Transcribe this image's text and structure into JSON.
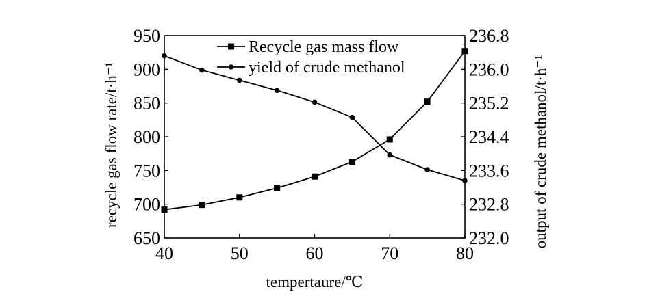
{
  "chart_data": {
    "type": "line",
    "x": [
      40,
      45,
      50,
      55,
      60,
      65,
      70,
      75,
      80
    ],
    "xlabel": "tempertaure/℃",
    "xlim": [
      40,
      80
    ],
    "xticks": [
      "40",
      "50",
      "60",
      "70",
      "80"
    ],
    "ylabel_left": "recycle gas flow rate/t·h⁻¹",
    "ylim_left": [
      650,
      950
    ],
    "yticks_left": [
      "650",
      "700",
      "750",
      "800",
      "850",
      "900",
      "950"
    ],
    "ylabel_right": "output of crude methanol/t·h⁻¹",
    "ylim_right": [
      232.0,
      236.8
    ],
    "yticks_right": [
      "232.0",
      "232.8",
      "233.6",
      "234.4",
      "235.2",
      "236.0",
      "236.8"
    ],
    "grid": false,
    "legend_position": "top",
    "series": [
      {
        "name": "Recycle gas mass flow",
        "axis": "left",
        "marker": "square",
        "values": [
          692,
          699,
          710,
          724,
          741,
          763,
          796,
          852,
          927
        ]
      },
      {
        "name": "yield of crude methanol",
        "axis": "right",
        "marker": "circle",
        "values": [
          236.32,
          235.98,
          235.74,
          235.5,
          235.22,
          234.86,
          233.97,
          233.62,
          233.36
        ]
      }
    ],
    "colors": {
      "line": "#000000",
      "axis": "#000000"
    }
  }
}
